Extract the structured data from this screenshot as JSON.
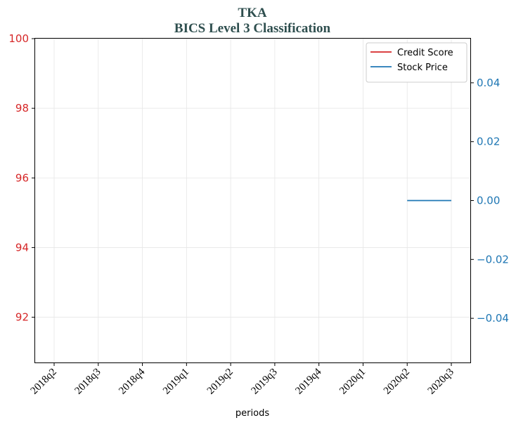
{
  "chart_data": {
    "type": "line",
    "title": "TKA",
    "subtitle": "BICS Level 3 Classification",
    "xlabel": "periods",
    "categories": [
      "2018q2",
      "2018q3",
      "2018q4",
      "2019q1",
      "2019q2",
      "2019q3",
      "2019q4",
      "2020q1",
      "2020q2",
      "2020q3"
    ],
    "left_axis": {
      "ylim": [
        90.7,
        100
      ],
      "ticks": [
        92,
        94,
        96,
        98,
        100
      ],
      "tick_labels": [
        "92",
        "94",
        "96",
        "98",
        "100"
      ],
      "color": "#d62728"
    },
    "right_axis": {
      "ylim": [
        -0.055,
        0.055
      ],
      "ticks": [
        -0.04,
        -0.02,
        0.0,
        0.02,
        0.04
      ],
      "tick_labels": [
        "−0.04",
        "−0.02",
        "0.00",
        "0.02",
        "0.04"
      ],
      "color": "#1f77b4"
    },
    "series": [
      {
        "name": "Credit Score",
        "axis": "left",
        "color": "#d62728",
        "values": [
          null,
          null,
          null,
          null,
          null,
          null,
          null,
          null,
          null,
          null
        ]
      },
      {
        "name": "Stock Price",
        "axis": "right",
        "color": "#1f77b4",
        "values": [
          null,
          null,
          null,
          null,
          null,
          null,
          null,
          null,
          0.0,
          0.0
        ]
      }
    ],
    "grid": true,
    "legend_position": "top-right",
    "title_color": "#2f4f4f"
  }
}
